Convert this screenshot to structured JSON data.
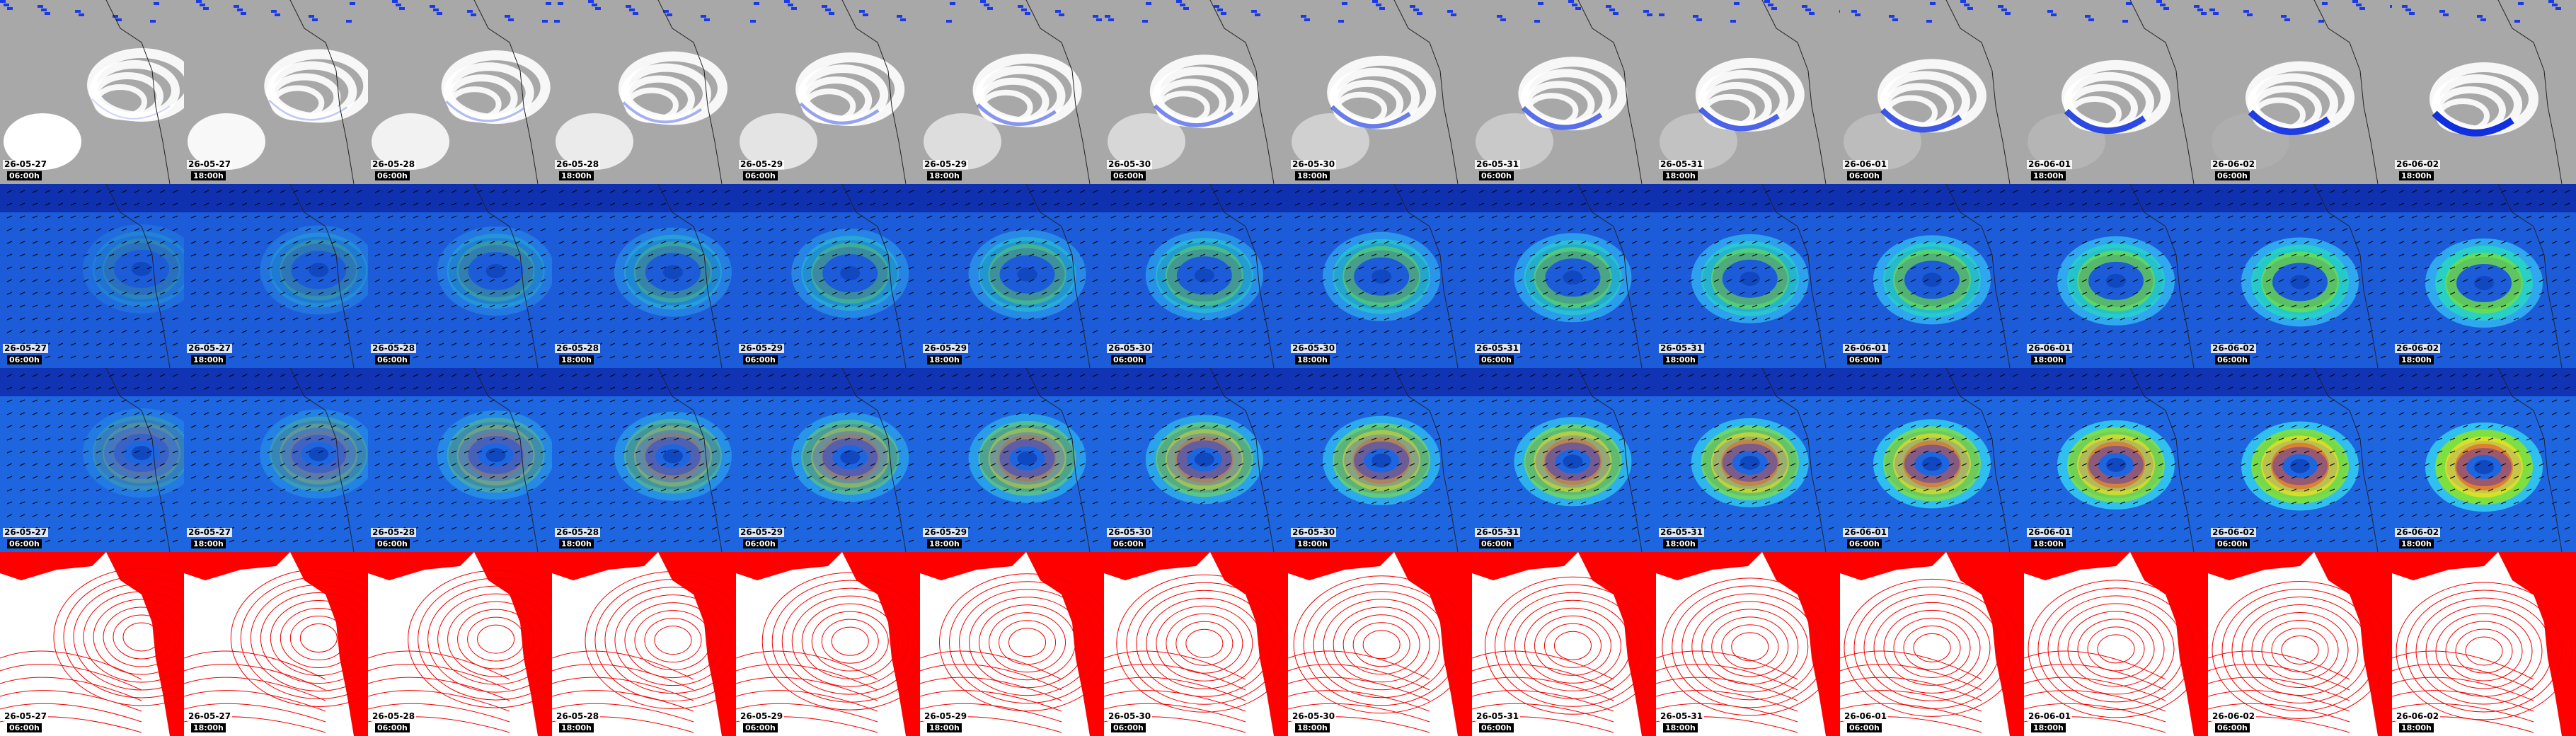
{
  "columns": [
    {
      "date": "26-05-27",
      "time": "06:00h"
    },
    {
      "date": "26-05-27",
      "time": "18:00h"
    },
    {
      "date": "26-05-28",
      "time": "06:00h"
    },
    {
      "date": "26-05-28",
      "time": "18:00h"
    },
    {
      "date": "26-05-29",
      "time": "06:00h"
    },
    {
      "date": "26-05-29",
      "time": "18:00h"
    },
    {
      "date": "26-05-30",
      "time": "06:00h"
    },
    {
      "date": "26-05-30",
      "time": "18:00h"
    },
    {
      "date": "26-05-31",
      "time": "06:00h"
    },
    {
      "date": "26-05-31",
      "time": "18:00h"
    },
    {
      "date": "26-06-01",
      "time": "06:00h"
    },
    {
      "date": "26-06-01",
      "time": "18:00h"
    },
    {
      "date": "26-06-02",
      "time": "06:00h"
    },
    {
      "date": "26-06-02",
      "time": "18:00h"
    }
  ]
}
